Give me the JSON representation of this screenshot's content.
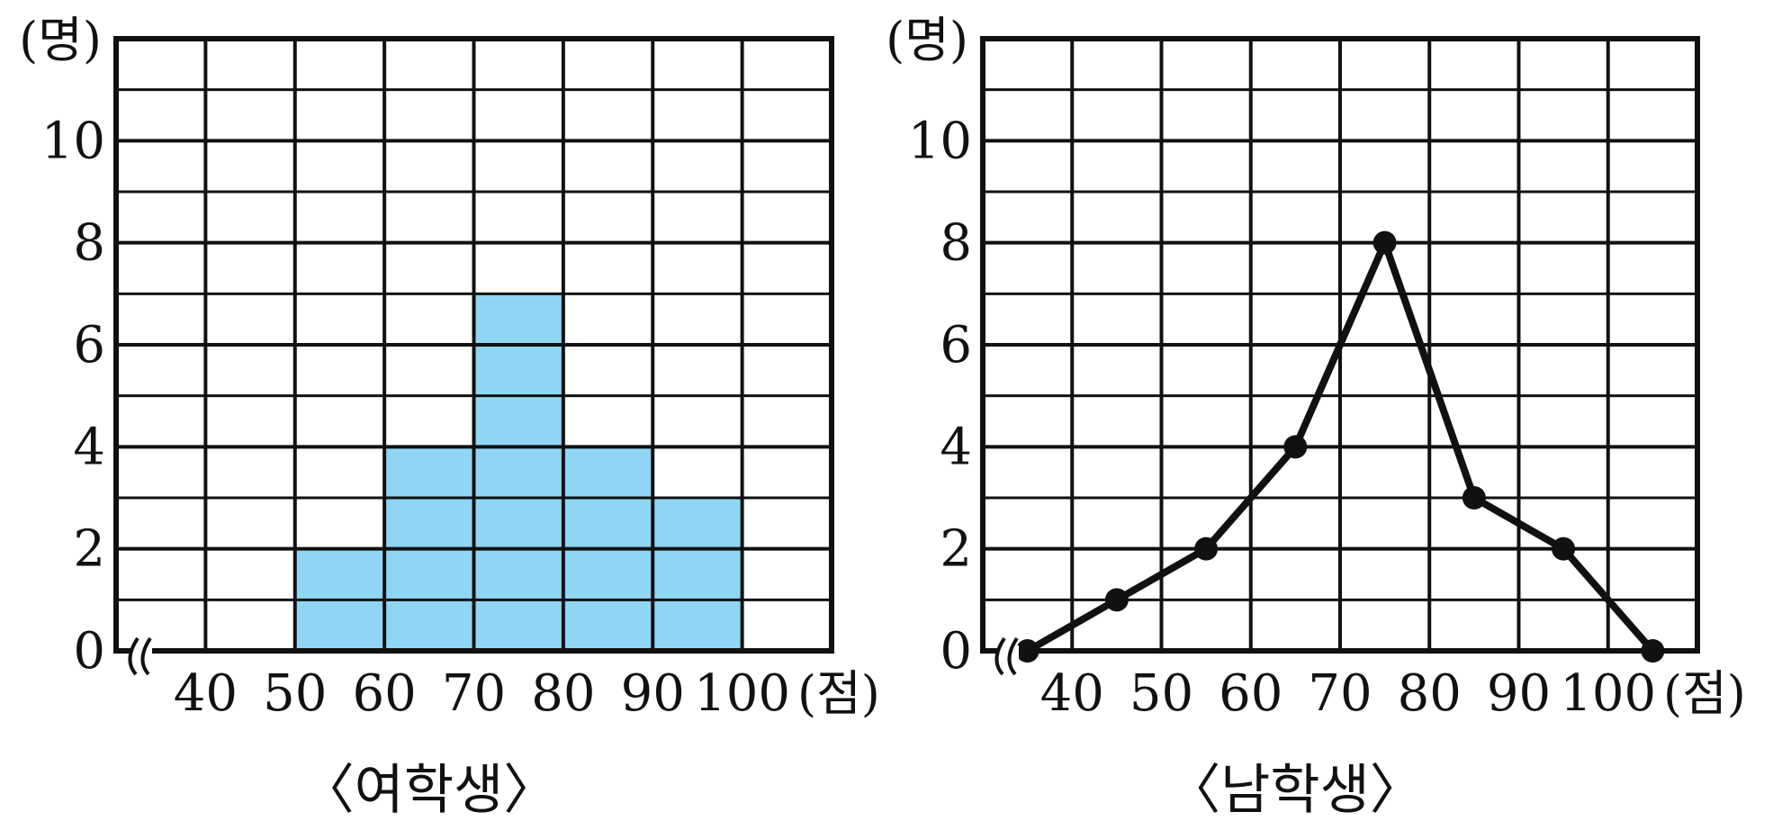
{
  "chart_data": [
    {
      "type": "bar",
      "subtype": "histogram",
      "title": "〈여학생〉",
      "ylabel": "(명)",
      "xlabel": "(점)",
      "x_ticks": [
        "40",
        "50",
        "60",
        "70",
        "80",
        "90",
        "100"
      ],
      "y_ticks": [
        "0",
        "2",
        "4",
        "6",
        "8",
        "10"
      ],
      "ylim": [
        0,
        12
      ],
      "xlim": [
        30,
        110
      ],
      "grid": true,
      "axis_break": true,
      "bar_color": "#8fd6f5",
      "bins": [
        {
          "from": 50,
          "to": 60,
          "value": 2
        },
        {
          "from": 60,
          "to": 70,
          "value": 4
        },
        {
          "from": 70,
          "to": 80,
          "value": 7
        },
        {
          "from": 80,
          "to": 90,
          "value": 4
        },
        {
          "from": 90,
          "to": 100,
          "value": 3
        }
      ]
    },
    {
      "type": "line",
      "subtype": "frequency polygon",
      "title": "〈남학생〉",
      "ylabel": "(명)",
      "xlabel": "(점)",
      "x_ticks": [
        "40",
        "50",
        "60",
        "70",
        "80",
        "90",
        "100"
      ],
      "y_ticks": [
        "0",
        "2",
        "4",
        "6",
        "8",
        "10"
      ],
      "ylim": [
        0,
        12
      ],
      "xlim": [
        30,
        110
      ],
      "grid": true,
      "axis_break": true,
      "line_color": "#111111",
      "points": [
        {
          "x": 35,
          "y": 0
        },
        {
          "x": 45,
          "y": 1
        },
        {
          "x": 55,
          "y": 2
        },
        {
          "x": 65,
          "y": 4
        },
        {
          "x": 75,
          "y": 8
        },
        {
          "x": 85,
          "y": 3
        },
        {
          "x": 95,
          "y": 2
        },
        {
          "x": 105,
          "y": 0
        }
      ]
    }
  ]
}
